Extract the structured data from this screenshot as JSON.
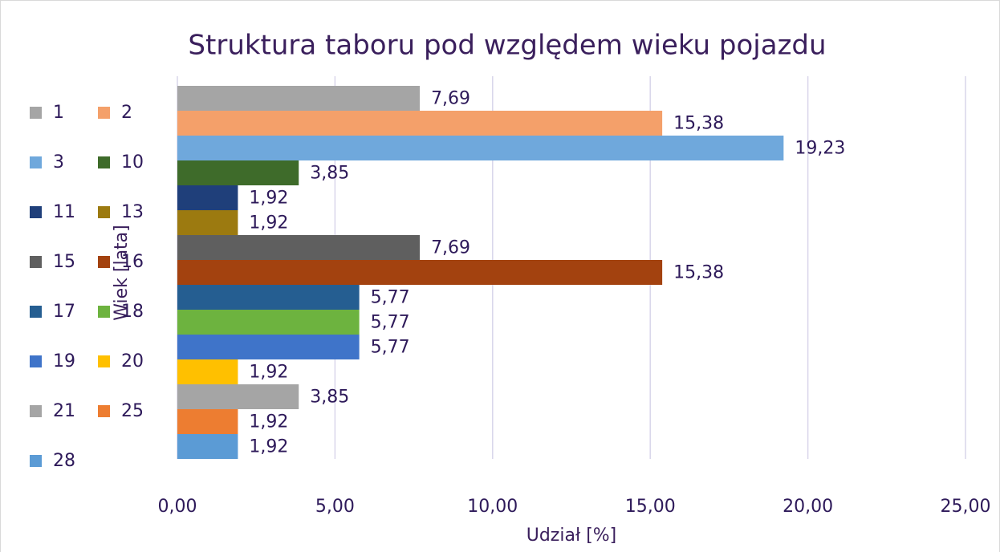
{
  "chart_data": {
    "type": "bar",
    "orientation": "horizontal",
    "title": "Struktura taboru pod względem wieku pojazdu",
    "xlabel": "Udział [%]",
    "ylabel": "Wiek [lata]",
    "xlim": [
      0,
      25
    ],
    "xticks": [
      {
        "value": 0,
        "label": "0,00"
      },
      {
        "value": 5,
        "label": "5,00"
      },
      {
        "value": 10,
        "label": "10,00"
      },
      {
        "value": 15,
        "label": "15,00"
      },
      {
        "value": 20,
        "label": "20,00"
      },
      {
        "value": 25,
        "label": "25,00"
      }
    ],
    "grid": true,
    "legend": "left",
    "series": [
      {
        "name": "1",
        "color": "#a5a5a5",
        "values": [
          7.69
        ],
        "value_labels": [
          "7,69"
        ]
      },
      {
        "name": "2",
        "color": "#f4a06a",
        "values": [
          15.38
        ],
        "value_labels": [
          "15,38"
        ]
      },
      {
        "name": "3",
        "color": "#6fa8dc",
        "values": [
          19.23
        ],
        "value_labels": [
          "19,23"
        ]
      },
      {
        "name": "10",
        "color": "#3e6b2a",
        "values": [
          3.85
        ],
        "value_labels": [
          "3,85"
        ]
      },
      {
        "name": "11",
        "color": "#1f3f7a",
        "values": [
          1.92
        ],
        "value_labels": [
          "1,92"
        ]
      },
      {
        "name": "13",
        "color": "#9c7a10",
        "values": [
          1.92
        ],
        "value_labels": [
          "1,92"
        ]
      },
      {
        "name": "15",
        "color": "#5f5f5f",
        "values": [
          7.69
        ],
        "value_labels": [
          "7,69"
        ]
      },
      {
        "name": "16",
        "color": "#a3420f",
        "values": [
          15.38
        ],
        "value_labels": [
          "15,38"
        ]
      },
      {
        "name": "17",
        "color": "#255e91",
        "values": [
          5.77
        ],
        "value_labels": [
          "5,77"
        ]
      },
      {
        "name": "18",
        "color": "#6db33f",
        "values": [
          5.77
        ],
        "value_labels": [
          "5,77"
        ]
      },
      {
        "name": "19",
        "color": "#3f74c9",
        "values": [
          5.77
        ],
        "value_labels": [
          "5,77"
        ]
      },
      {
        "name": "20",
        "color": "#ffc000",
        "values": [
          1.92
        ],
        "value_labels": [
          "1,92"
        ]
      },
      {
        "name": "21",
        "color": "#a5a5a5",
        "values": [
          3.85
        ],
        "value_labels": [
          "3,85"
        ]
      },
      {
        "name": "25",
        "color": "#ed7d31",
        "values": [
          1.92
        ],
        "value_labels": [
          "1,92"
        ]
      },
      {
        "name": "28",
        "color": "#5b9bd5",
        "values": [
          1.92
        ],
        "value_labels": [
          "1,92"
        ]
      }
    ]
  }
}
